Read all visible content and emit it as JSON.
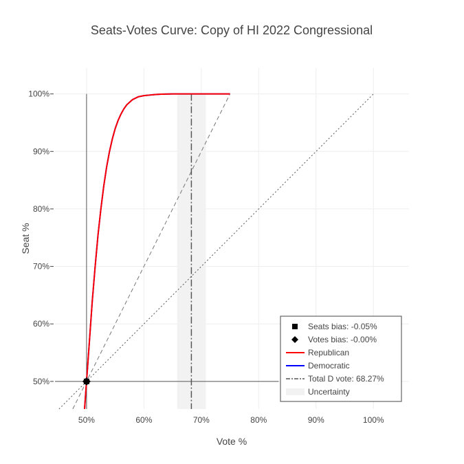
{
  "chart_data": {
    "type": "line",
    "title": "Seats-Votes Curve: Copy of HI 2022 Congressional",
    "xlabel": "Vote %",
    "ylabel": "Seat %",
    "xlim": [
      0.445,
      1.062
    ],
    "ylim": [
      0.452,
      1.045
    ],
    "x_ticks": [
      0.5,
      0.6,
      0.7,
      0.8,
      0.9,
      1.0
    ],
    "x_tick_labels": [
      "50%",
      "60%",
      "70%",
      "80%",
      "90%",
      "100%"
    ],
    "y_ticks": [
      0.5,
      0.6,
      0.7,
      0.8,
      0.9,
      1.0
    ],
    "y_tick_labels": [
      "50%",
      "60%",
      "70%",
      "80%",
      "90%",
      "100%"
    ],
    "grid": true,
    "legend_position": "bottom-right",
    "series": [
      {
        "name": "Democratic",
        "color": "#0000ff",
        "x": [
          0.4965,
          0.5,
          0.505,
          0.51,
          0.515,
          0.52,
          0.525,
          0.53,
          0.535,
          0.54,
          0.545,
          0.55,
          0.555,
          0.56,
          0.565,
          0.57,
          0.58,
          0.59,
          0.6,
          0.61,
          0.62,
          0.63,
          0.65,
          0.68,
          0.7,
          0.75
        ],
        "y": [
          0.452,
          0.5,
          0.57,
          0.64,
          0.7,
          0.755,
          0.8,
          0.84,
          0.873,
          0.9,
          0.922,
          0.94,
          0.954,
          0.965,
          0.974,
          0.981,
          0.99,
          0.995,
          0.997,
          0.998,
          0.999,
          0.9995,
          1.0,
          1.0,
          1.0,
          1.0
        ]
      },
      {
        "name": "Republican",
        "color": "#ff0000",
        "x": [
          0.4965,
          0.5,
          0.505,
          0.51,
          0.515,
          0.52,
          0.525,
          0.53,
          0.535,
          0.54,
          0.545,
          0.55,
          0.555,
          0.56,
          0.565,
          0.57,
          0.58,
          0.59,
          0.6,
          0.61,
          0.62,
          0.63,
          0.65,
          0.68,
          0.7,
          0.75
        ],
        "y": [
          0.452,
          0.5,
          0.57,
          0.64,
          0.7,
          0.755,
          0.8,
          0.84,
          0.873,
          0.9,
          0.922,
          0.94,
          0.954,
          0.965,
          0.974,
          0.981,
          0.99,
          0.995,
          0.997,
          0.998,
          0.999,
          0.9995,
          1.0,
          1.0,
          1.0,
          1.0
        ]
      }
    ],
    "reference_lines": {
      "proportionality": {
        "x": [
          0.452,
          1.0
        ],
        "y": [
          0.452,
          1.0
        ],
        "style": "dotted",
        "color": "#555555"
      },
      "responsiveness": {
        "x": [
          0.476,
          0.75
        ],
        "y": [
          0.452,
          1.0
        ],
        "style": "dashed",
        "color": "#777777"
      },
      "vertical_50": {
        "x": 0.5,
        "y": [
          0.452,
          1.0
        ],
        "color": "#555555"
      },
      "horizontal_50": {
        "y": 0.5,
        "x": [
          0.445,
          0.835
        ],
        "color": "#555555"
      }
    },
    "total_d_vote": 0.6827,
    "uncertainty_band": [
      0.658,
      0.708
    ],
    "markers": {
      "seats_bias": {
        "x": 0.5,
        "y": 0.5,
        "value": -0.0005
      },
      "votes_bias": {
        "x": 0.5,
        "y": 0.5,
        "value": 0.0
      }
    },
    "legend": [
      {
        "label": "Seats bias: -0.05%",
        "symbol": "square",
        "color": "#000000"
      },
      {
        "label": "Votes bias: -0.00%",
        "symbol": "diamond",
        "color": "#000000"
      },
      {
        "label": "Republican",
        "symbol": "line",
        "color": "#ff0000"
      },
      {
        "label": "Democratic",
        "symbol": "line",
        "color": "#0000ff"
      },
      {
        "label": "Total D vote: 68.27%",
        "symbol": "dashdot",
        "color": "#555555"
      },
      {
        "label": "Uncertainty",
        "symbol": "band",
        "color": "#f2f2f2"
      }
    ]
  }
}
